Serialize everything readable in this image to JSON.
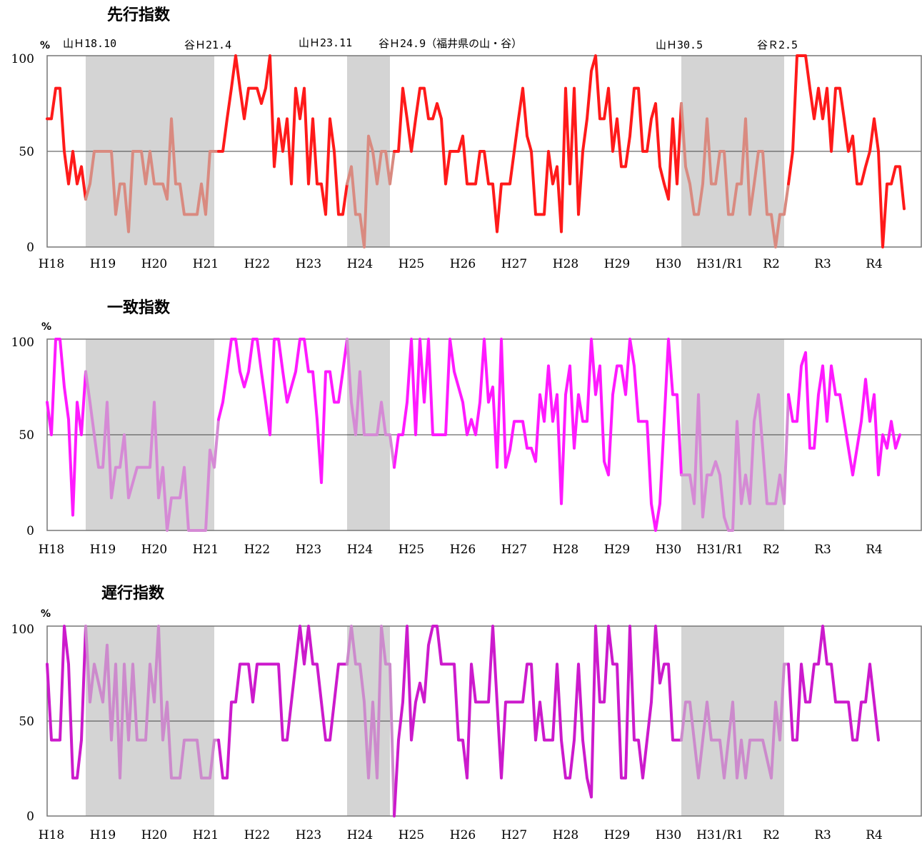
{
  "chart_data": [
    {
      "type": "line",
      "title": "先行指数",
      "ylabel": "%",
      "ylim": [
        0,
        100
      ],
      "yticks": [
        "0",
        "50",
        "100"
      ],
      "grid": "horizontal-50",
      "color": "#ff1a1a",
      "shade_color": "#d4d4d4",
      "inshade_color": "#d98a80",
      "x_start": "H18.1",
      "x_labels": [
        "H18",
        "H19",
        "H20",
        "H21",
        "H22",
        "H23",
        "H24",
        "H25",
        "H26",
        "H27",
        "H28",
        "H29",
        "H30",
        "H31/R1",
        "R2",
        "R3",
        "R4"
      ],
      "shaded": [
        {
          "from": "H18.10",
          "to": "H21.4"
        },
        {
          "from": "H23.11",
          "to": "H24.9"
        },
        {
          "from": "H30.5",
          "to": "R2.5"
        }
      ],
      "annotations": [
        "山Ｈ18.10",
        "谷Ｈ21.4",
        "山Ｈ23.11",
        "谷Ｈ24.9（福井県の山・谷）",
        "山Ｈ30.5",
        "谷Ｒ2.5"
      ],
      "series": [
        {
          "values": [
            67,
            67,
            83,
            83,
            50,
            33,
            50,
            33,
            42,
            25,
            33,
            50,
            50,
            50,
            50,
            50,
            17,
            33,
            33,
            8,
            50,
            50,
            50,
            33,
            50,
            33,
            33,
            33,
            25,
            67,
            33,
            33,
            17,
            17,
            17,
            17,
            33,
            17,
            50,
            50,
            50,
            50,
            67,
            83,
            100,
            83,
            67,
            83,
            83,
            83,
            75,
            83,
            100,
            42,
            67,
            50,
            67,
            33,
            83,
            67,
            83,
            33,
            67,
            33,
            33,
            17,
            67,
            50,
            17,
            17,
            33,
            42,
            17,
            17,
            0,
            58,
            50,
            33,
            50,
            50,
            33,
            50,
            50,
            83,
            67,
            50,
            67,
            83,
            83,
            67,
            67,
            75,
            67,
            33,
            50,
            50,
            50,
            58,
            33,
            33,
            33,
            50,
            50,
            33,
            33,
            8,
            33,
            33,
            33,
            50,
            67,
            83,
            58,
            50,
            17,
            17,
            17,
            50,
            33,
            42,
            8,
            83,
            33,
            83,
            17,
            50,
            67,
            92,
            100,
            67,
            67,
            83,
            50,
            67,
            42,
            42,
            58,
            83,
            83,
            50,
            50,
            67,
            75,
            42,
            33,
            25,
            67,
            33,
            75,
            42,
            33,
            17,
            17,
            33,
            67,
            33,
            33,
            50,
            50,
            17,
            17,
            33,
            33,
            67,
            17,
            33,
            50,
            50,
            17,
            17,
            0,
            17,
            17,
            33,
            50,
            100,
            100,
            100,
            83,
            67,
            83,
            67,
            83,
            50,
            83,
            83,
            67,
            50,
            58,
            33,
            33,
            42,
            50,
            67,
            50,
            0,
            33,
            33,
            42,
            42,
            20
          ]
        }
      ]
    },
    {
      "type": "line",
      "title": "一致指数",
      "ylabel": "%",
      "ylim": [
        0,
        100
      ],
      "yticks": [
        "0",
        "50",
        "100"
      ],
      "grid": "horizontal-50",
      "color": "#ff1aff",
      "shade_color": "#d4d4d4",
      "inshade_color": "#d58ad5",
      "x_start": "H18.1",
      "x_labels": [
        "H18",
        "H19",
        "H20",
        "H21",
        "H22",
        "H23",
        "H24",
        "H25",
        "H26",
        "H27",
        "H28",
        "H29",
        "H30",
        "H31/R1",
        "R2",
        "R3",
        "R4"
      ],
      "shaded": [
        {
          "from": "H18.10",
          "to": "H21.4"
        },
        {
          "from": "H23.11",
          "to": "H24.9"
        },
        {
          "from": "H30.5",
          "to": "R2.5"
        }
      ],
      "series": [
        {
          "values": [
            67,
            50,
            100,
            100,
            75,
            58,
            8,
            67,
            50,
            83,
            67,
            50,
            33,
            33,
            67,
            17,
            33,
            33,
            50,
            17,
            25,
            33,
            33,
            33,
            33,
            67,
            17,
            33,
            0,
            17,
            17,
            17,
            33,
            0,
            0,
            0,
            0,
            0,
            42,
            33,
            58,
            67,
            83,
            100,
            100,
            83,
            75,
            83,
            100,
            100,
            83,
            67,
            50,
            100,
            100,
            83,
            67,
            75,
            83,
            100,
            100,
            83,
            83,
            58,
            25,
            83,
            83,
            67,
            67,
            83,
            100,
            67,
            50,
            83,
            50,
            50,
            50,
            50,
            67,
            50,
            50,
            33,
            50,
            50,
            67,
            100,
            50,
            100,
            67,
            100,
            50,
            50,
            50,
            50,
            100,
            83,
            75,
            67,
            50,
            58,
            50,
            67,
            100,
            67,
            75,
            33,
            100,
            33,
            42,
            57,
            57,
            57,
            43,
            43,
            36,
            71,
            57,
            86,
            57,
            71,
            14,
            71,
            86,
            43,
            71,
            57,
            57,
            100,
            71,
            86,
            36,
            29,
            71,
            86,
            86,
            71,
            100,
            86,
            57,
            57,
            57,
            14,
            0,
            14,
            57,
            100,
            71,
            71,
            29,
            29,
            29,
            14,
            71,
            7,
            29,
            29,
            36,
            29,
            7,
            0,
            0,
            57,
            14,
            29,
            14,
            57,
            71,
            43,
            14,
            14,
            14,
            29,
            14,
            71,
            57,
            57,
            86,
            93,
            43,
            43,
            71,
            86,
            57,
            86,
            71,
            71,
            57,
            43,
            29,
            43,
            57,
            79,
            57,
            71,
            29,
            50,
            43,
            57,
            43,
            50
          ]
        }
      ]
    },
    {
      "type": "line",
      "title": "遅行指数",
      "ylabel": "%",
      "ylim": [
        0,
        100
      ],
      "yticks": [
        "0",
        "50",
        "100"
      ],
      "grid": "horizontal-50",
      "color": "#cc1acc",
      "shade_color": "#d4d4d4",
      "inshade_color": "#cc8acc",
      "x_start": "H18.1",
      "x_labels": [
        "H18",
        "H19",
        "H20",
        "H21",
        "H22",
        "H23",
        "H24",
        "H25",
        "H26",
        "H27",
        "H28",
        "H29",
        "H30",
        "H31/R1",
        "R2",
        "R3",
        "R4"
      ],
      "shaded": [
        {
          "from": "H18.10",
          "to": "H21.4"
        },
        {
          "from": "H23.11",
          "to": "H24.9"
        },
        {
          "from": "H30.5",
          "to": "R2.5"
        }
      ],
      "series": [
        {
          "values": [
            80,
            40,
            40,
            40,
            100,
            80,
            20,
            20,
            40,
            100,
            60,
            80,
            70,
            60,
            90,
            40,
            80,
            20,
            80,
            40,
            80,
            40,
            40,
            40,
            80,
            60,
            100,
            40,
            60,
            20,
            20,
            20,
            40,
            40,
            40,
            40,
            20,
            20,
            20,
            40,
            40,
            20,
            20,
            60,
            60,
            80,
            80,
            80,
            60,
            80,
            80,
            80,
            80,
            80,
            80,
            40,
            40,
            60,
            80,
            100,
            80,
            100,
            80,
            80,
            60,
            40,
            40,
            60,
            80,
            80,
            80,
            100,
            80,
            80,
            60,
            20,
            60,
            20,
            100,
            80,
            80,
            0,
            40,
            60,
            100,
            40,
            60,
            70,
            60,
            90,
            100,
            100,
            80,
            80,
            80,
            80,
            40,
            40,
            20,
            80,
            60,
            60,
            60,
            60,
            100,
            60,
            20,
            60,
            60,
            60,
            60,
            60,
            80,
            80,
            40,
            60,
            40,
            40,
            40,
            80,
            40,
            20,
            20,
            40,
            80,
            40,
            20,
            10,
            100,
            60,
            60,
            100,
            80,
            80,
            20,
            20,
            100,
            40,
            40,
            20,
            40,
            60,
            100,
            70,
            80,
            80,
            40,
            40,
            40,
            60,
            60,
            40,
            20,
            40,
            60,
            40,
            40,
            40,
            20,
            40,
            60,
            20,
            40,
            20,
            40,
            40,
            40,
            40,
            30,
            20,
            60,
            40,
            80,
            80,
            40,
            40,
            80,
            60,
            60,
            80,
            80,
            100,
            80,
            80,
            60,
            60,
            60,
            60,
            40,
            40,
            60,
            60,
            80,
            60,
            40
          ]
        }
      ]
    }
  ]
}
